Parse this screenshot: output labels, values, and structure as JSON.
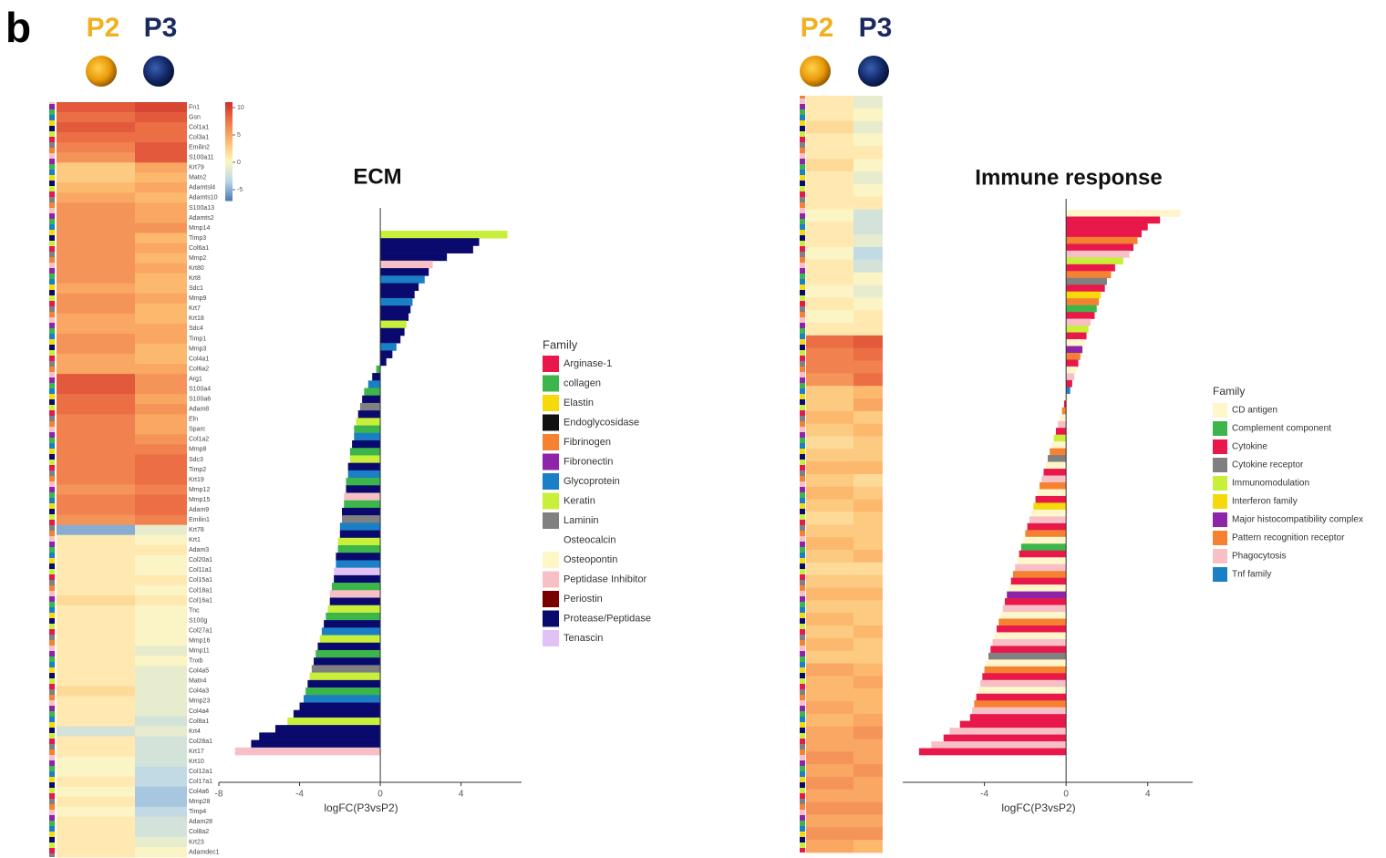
{
  "panel_label": "b",
  "chart_data": [
    {
      "type": "heatmap",
      "columns": [
        "P2",
        "P3"
      ],
      "clim": [
        -7,
        11
      ],
      "colors": [
        "#4a78b5",
        "#b9d7e8",
        "#fff6c2",
        "#fdbd70",
        "#f07a4a",
        "#d0302a"
      ],
      "colorbar_ticks": [
        10,
        5,
        0,
        -5
      ],
      "rows": [
        "Fn1",
        "Gsn",
        "Col1a1",
        "Col3a1",
        "Emilin2",
        "S100a11",
        "Krt79",
        "Matn2",
        "Adamtsl4",
        "Adamts10",
        "S100a13",
        "Adamts2",
        "Mmp14",
        "Timp3",
        "Col6a1",
        "Mmp2",
        "Krt80",
        "Krt8",
        "Sdc1",
        "Mmp9",
        "Krt7",
        "Krt18",
        "Sdc4",
        "Timp1",
        "Mmp3",
        "Col4a1",
        "Col6a2",
        "Arg1",
        "S100a4",
        "S100a6",
        "Adam8",
        "Eln",
        "Sparc",
        "Col1a2",
        "Mmp8",
        "Sdc3",
        "Timp2",
        "Krt19",
        "Mmp12",
        "Mmp15",
        "Adam9",
        "Emilin1",
        "Krt78",
        "Krt1",
        "Adam3",
        "Col20a1",
        "Col11a1",
        "Col15a1",
        "Col18a1",
        "Col16a1",
        "Tnc",
        "S100g",
        "Col27a1",
        "Mmp16",
        "Mmp11",
        "Tnxb",
        "Col4a5",
        "Matn4",
        "Col4a3",
        "Mmp23",
        "Col4a4",
        "Col8a1",
        "Krt4",
        "Col28a1",
        "Krt17",
        "Krt10",
        "Col12a1",
        "Col17a1",
        "Col4a6",
        "Mmp28",
        "Timp4",
        "Adam28",
        "Col8a2",
        "Krt23",
        "Adamdec1"
      ],
      "values": [
        [
          9,
          10
        ],
        [
          8,
          9
        ],
        [
          9,
          8
        ],
        [
          8,
          8
        ],
        [
          7,
          9
        ],
        [
          6,
          9
        ],
        [
          3,
          5
        ],
        [
          3,
          4
        ],
        [
          4,
          5
        ],
        [
          5,
          4
        ],
        [
          6,
          5
        ],
        [
          6,
          5
        ],
        [
          6,
          6
        ],
        [
          6,
          4
        ],
        [
          6,
          5
        ],
        [
          6,
          4
        ],
        [
          6,
          5
        ],
        [
          6,
          4
        ],
        [
          5,
          4
        ],
        [
          6,
          5
        ],
        [
          6,
          4
        ],
        [
          5,
          4
        ],
        [
          5,
          5
        ],
        [
          6,
          5
        ],
        [
          6,
          4
        ],
        [
          5,
          4
        ],
        [
          5,
          5
        ],
        [
          9,
          6
        ],
        [
          9,
          6
        ],
        [
          8,
          5
        ],
        [
          8,
          6
        ],
        [
          7,
          5
        ],
        [
          7,
          5
        ],
        [
          7,
          6
        ],
        [
          7,
          7
        ],
        [
          7,
          8
        ],
        [
          7,
          8
        ],
        [
          7,
          8
        ],
        [
          6,
          7
        ],
        [
          7,
          8
        ],
        [
          7,
          8
        ],
        [
          6,
          7
        ],
        [
          -5,
          -1
        ],
        [
          1,
          0
        ],
        [
          1,
          1
        ],
        [
          1,
          0
        ],
        [
          1,
          0
        ],
        [
          1,
          1
        ],
        [
          1,
          0
        ],
        [
          2,
          1
        ],
        [
          1,
          0
        ],
        [
          1,
          0
        ],
        [
          1,
          0
        ],
        [
          1,
          0
        ],
        [
          1,
          -1
        ],
        [
          1,
          0
        ],
        [
          1,
          -1
        ],
        [
          1,
          -1
        ],
        [
          2,
          -1
        ],
        [
          1,
          -1
        ],
        [
          1,
          -1
        ],
        [
          1,
          -2
        ],
        [
          -2,
          -1
        ],
        [
          1,
          -2
        ],
        [
          1,
          -2
        ],
        [
          0,
          -2
        ],
        [
          0,
          -3
        ],
        [
          1,
          -3
        ],
        [
          0,
          -4
        ],
        [
          1,
          -4
        ],
        [
          0,
          -3
        ],
        [
          1,
          -2
        ],
        [
          1,
          -2
        ],
        [
          1,
          -1
        ],
        [
          1,
          0
        ]
      ]
    },
    {
      "type": "bar",
      "title": "ECM",
      "x_label": "logFC(P3vsP2)",
      "xlim": [
        -8,
        7
      ],
      "xticks": [
        -8,
        -4,
        0,
        4
      ],
      "legend_title": "Family",
      "families": [
        {
          "name": "Arginase-1",
          "color": "#e8194a"
        },
        {
          "name": "collagen",
          "color": "#3cb54a"
        },
        {
          "name": "Elastin",
          "color": "#f5d90a"
        },
        {
          "name": "Endoglycosidase",
          "color": "#111111"
        },
        {
          "name": "Fibrinogen",
          "color": "#f58231"
        },
        {
          "name": "Fibronectin",
          "color": "#8e24aa"
        },
        {
          "name": "Glycoprotein",
          "color": "#1a7fc4"
        },
        {
          "name": "Keratin",
          "color": "#c8ef3a"
        },
        {
          "name": "Laminin",
          "color": "#808080"
        },
        {
          "name": "Osteocalcin",
          "color": "#ffffff"
        },
        {
          "name": "Osteopontin",
          "color": "#fff7c8"
        },
        {
          "name": "Peptidase Inhibitor",
          "color": "#f7c0c6"
        },
        {
          "name": "Periostin",
          "color": "#7a0000"
        },
        {
          "name": "Protease/Peptidase",
          "color": "#0a0a6e"
        },
        {
          "name": "Tenascin",
          "color": "#e2c2f5"
        }
      ],
      "values": [
        6.3,
        4.9,
        4.6,
        3.3,
        2.6,
        2.4,
        2.2,
        1.9,
        1.7,
        1.6,
        1.5,
        1.4,
        1.3,
        1.2,
        1.0,
        0.8,
        0.6,
        0.3,
        -0.2,
        -0.4,
        -0.6,
        -0.8,
        -0.9,
        -1.0,
        -1.1,
        -1.2,
        -1.3,
        -1.3,
        -1.4,
        -1.5,
        -1.5,
        -1.6,
        -1.6,
        -1.7,
        -1.7,
        -1.8,
        -1.8,
        -1.9,
        -1.9,
        -2.0,
        -2.0,
        -2.1,
        -2.1,
        -2.2,
        -2.2,
        -2.3,
        -2.3,
        -2.4,
        -2.5,
        -2.5,
        -2.6,
        -2.7,
        -2.8,
        -2.9,
        -3.0,
        -3.1,
        -3.2,
        -3.3,
        -3.4,
        -3.5,
        -3.6,
        -3.7,
        -3.8,
        -4.0,
        -4.3,
        -4.6,
        -5.2,
        -6.0,
        -6.4,
        -7.2
      ],
      "bar_family": [
        "Keratin",
        "Protease/Peptidase",
        "Protease/Peptidase",
        "Protease/Peptidase",
        "Peptidase Inhibitor",
        "Protease/Peptidase",
        "Glycoprotein",
        "Protease/Peptidase",
        "Protease/Peptidase",
        "Glycoprotein",
        "Protease/Peptidase",
        "Protease/Peptidase",
        "Keratin",
        "Protease/Peptidase",
        "Protease/Peptidase",
        "Glycoprotein",
        "Protease/Peptidase",
        "Protease/Peptidase",
        "collagen",
        "Protease/Peptidase",
        "Glycoprotein",
        "collagen",
        "Protease/Peptidase",
        "Laminin",
        "Protease/Peptidase",
        "Keratin",
        "collagen",
        "Glycoprotein",
        "Protease/Peptidase",
        "collagen",
        "Keratin",
        "Protease/Peptidase",
        "Glycoprotein",
        "collagen",
        "Protease/Peptidase",
        "Peptidase Inhibitor",
        "collagen",
        "Protease/Peptidase",
        "Laminin",
        "Glycoprotein",
        "Protease/Peptidase",
        "Keratin",
        "collagen",
        "Protease/Peptidase",
        "Glycoprotein",
        "Tenascin",
        "Protease/Peptidase",
        "collagen",
        "Peptidase Inhibitor",
        "Protease/Peptidase",
        "Keratin",
        "collagen",
        "Protease/Peptidase",
        "Glycoprotein",
        "Keratin",
        "Protease/Peptidase",
        "collagen",
        "Protease/Peptidase",
        "Laminin",
        "Keratin",
        "Protease/Peptidase",
        "collagen",
        "Glycoprotein",
        "Protease/Peptidase",
        "Protease/Peptidase",
        "Keratin",
        "Protease/Peptidase",
        "Protease/Peptidase",
        "Protease/Peptidase",
        "Peptidase Inhibitor"
      ]
    },
    {
      "type": "heatmap",
      "columns": [
        "P2",
        "P3"
      ],
      "clim": [
        -7,
        11
      ],
      "colors": [
        "#4a78b5",
        "#b9d7e8",
        "#fff6c2",
        "#fdbd70",
        "#f07a4a",
        "#d0302a"
      ],
      "values": [
        [
          1,
          -1
        ],
        [
          1,
          0
        ],
        [
          2,
          -1
        ],
        [
          1,
          0
        ],
        [
          1,
          1
        ],
        [
          2,
          0
        ],
        [
          1,
          -1
        ],
        [
          1,
          0
        ],
        [
          1,
          1
        ],
        [
          0,
          -2
        ],
        [
          1,
          -2
        ],
        [
          1,
          -1
        ],
        [
          0,
          -3
        ],
        [
          1,
          -2
        ],
        [
          1,
          0
        ],
        [
          0,
          -1
        ],
        [
          1,
          0
        ],
        [
          0,
          1
        ],
        [
          1,
          1
        ],
        [
          8,
          9
        ],
        [
          7,
          8
        ],
        [
          7,
          7
        ],
        [
          6,
          8
        ],
        [
          3,
          4
        ],
        [
          3,
          5
        ],
        [
          4,
          3
        ],
        [
          3,
          4
        ],
        [
          2,
          3
        ],
        [
          3,
          3
        ],
        [
          4,
          4
        ],
        [
          3,
          2
        ],
        [
          4,
          3
        ],
        [
          3,
          4
        ],
        [
          2,
          3
        ],
        [
          3,
          3
        ],
        [
          4,
          3
        ],
        [
          3,
          4
        ],
        [
          2,
          2
        ],
        [
          3,
          3
        ],
        [
          4,
          4
        ],
        [
          3,
          3
        ],
        [
          4,
          3
        ],
        [
          3,
          4
        ],
        [
          4,
          3
        ],
        [
          3,
          3
        ],
        [
          5,
          4
        ],
        [
          4,
          5
        ],
        [
          4,
          4
        ],
        [
          5,
          4
        ],
        [
          4,
          5
        ],
        [
          5,
          6
        ],
        [
          5,
          5
        ],
        [
          6,
          5
        ],
        [
          5,
          6
        ],
        [
          6,
          5
        ],
        [
          5,
          5
        ],
        [
          6,
          6
        ],
        [
          5,
          5
        ],
        [
          6,
          6
        ],
        [
          5,
          4
        ]
      ]
    },
    {
      "type": "bar",
      "title": "Immune response",
      "x_label": "logFC(P3vsP2)",
      "xlim": [
        -8,
        6.2
      ],
      "xticks": [
        -4,
        0,
        4
      ],
      "legend_title": "Family",
      "families": [
        {
          "name": "CD antigen",
          "color": "#fff6cc"
        },
        {
          "name": "Complement component",
          "color": "#3cb54a"
        },
        {
          "name": "Cytokine",
          "color": "#e8194a"
        },
        {
          "name": "Cytokine receptor",
          "color": "#808080"
        },
        {
          "name": "Immunomodulation",
          "color": "#c8ef3a"
        },
        {
          "name": "Interferon family",
          "color": "#f5d90a"
        },
        {
          "name": "Major histocompatibility complex",
          "color": "#8e24aa"
        },
        {
          "name": "Pattern recognition receptor",
          "color": "#f58231"
        },
        {
          "name": "Phagocytosis",
          "color": "#f7c0c6"
        },
        {
          "name": "Tnf family",
          "color": "#1a7fc4"
        }
      ],
      "values": [
        5.6,
        4.6,
        4.0,
        3.7,
        3.5,
        3.3,
        3.1,
        2.8,
        2.4,
        2.2,
        2.0,
        1.9,
        1.7,
        1.6,
        1.5,
        1.4,
        1.2,
        1.1,
        1.0,
        0.9,
        0.8,
        0.7,
        0.6,
        0.5,
        0.4,
        0.3,
        0.2,
        0.1,
        -0.1,
        -0.2,
        -0.3,
        -0.4,
        -0.5,
        -0.6,
        -0.7,
        -0.8,
        -0.9,
        -1.0,
        -1.1,
        -1.2,
        -1.3,
        -1.4,
        -1.5,
        -1.6,
        -1.7,
        -1.8,
        -1.9,
        -2.0,
        -2.1,
        -2.2,
        -2.3,
        -2.4,
        -2.5,
        -2.6,
        -2.7,
        -2.8,
        -2.9,
        -3.0,
        -3.1,
        -3.2,
        -3.3,
        -3.4,
        -3.5,
        -3.6,
        -3.7,
        -3.8,
        -3.9,
        -4.0,
        -4.1,
        -4.2,
        -4.3,
        -4.4,
        -4.5,
        -4.6,
        -4.7,
        -5.2,
        -5.7,
        -6.0,
        -6.6,
        -7.2
      ],
      "bar_family": [
        "CD antigen",
        "Cytokine",
        "Cytokine",
        "Cytokine",
        "Pattern recognition receptor",
        "Cytokine",
        "Phagocytosis",
        "Immunomodulation",
        "Cytokine",
        "Pattern recognition receptor",
        "Cytokine receptor",
        "Cytokine",
        "Interferon family",
        "Pattern recognition receptor",
        "Complement component",
        "Cytokine",
        "Phagocytosis",
        "Immunomodulation",
        "Cytokine",
        "CD antigen",
        "Major histocompatibility complex",
        "Pattern recognition receptor",
        "Cytokine",
        "CD antigen",
        "Phagocytosis",
        "Cytokine",
        "Tnf family",
        "CD antigen",
        "Cytokine",
        "Pattern recognition receptor",
        "CD antigen",
        "Phagocytosis",
        "Cytokine",
        "Immunomodulation",
        "CD antigen",
        "Pattern recognition receptor",
        "Cytokine receptor",
        "CD antigen",
        "Cytokine",
        "Phagocytosis",
        "Pattern recognition receptor",
        "CD antigen",
        "Cytokine",
        "Interferon family",
        "CD antigen",
        "Phagocytosis",
        "Cytokine",
        "Pattern recognition receptor",
        "CD antigen",
        "Complement component",
        "Cytokine",
        "CD antigen",
        "Phagocytosis",
        "Pattern recognition receptor",
        "Cytokine",
        "CD antigen",
        "Major histocompatibility complex",
        "Cytokine",
        "Phagocytosis",
        "CD antigen",
        "Pattern recognition receptor",
        "Cytokine",
        "CD antigen",
        "Phagocytosis",
        "Cytokine",
        "Cytokine receptor",
        "CD antigen",
        "Pattern recognition receptor",
        "Cytokine",
        "Phagocytosis",
        "CD antigen",
        "Cytokine",
        "Pattern recognition receptor",
        "Phagocytosis",
        "Cytokine",
        "Cytokine",
        "Phagocytosis",
        "Cytokine",
        "Phagocytosis",
        "Cytokine"
      ]
    }
  ]
}
